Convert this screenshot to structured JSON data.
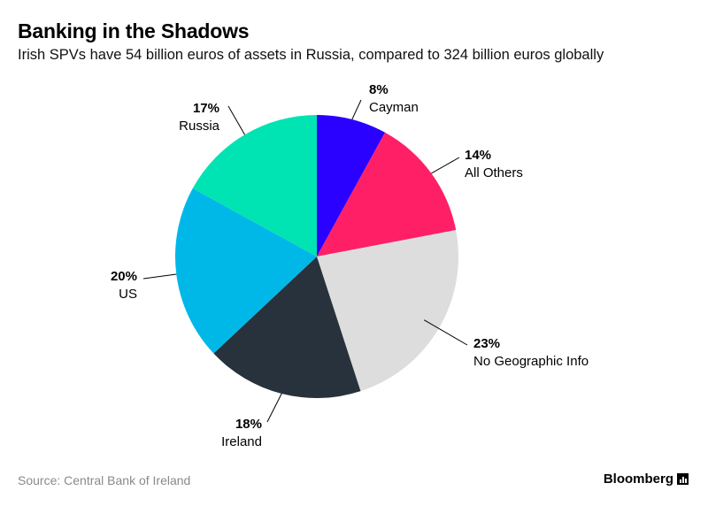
{
  "header": {
    "title": "Banking in the Shadows",
    "subtitle": "Irish SPVs have 54 billion euros of assets in Russia, compared to 324 billion euros globally"
  },
  "footer": {
    "source": "Source: Central Bank of Ireland",
    "brand": "Bloomberg",
    "brand_icon": "bloomberg-chart-icon"
  },
  "chart_data": {
    "type": "pie",
    "slices": [
      {
        "label": "Cayman",
        "value": 8,
        "display": "8%",
        "color": "#2a00ff"
      },
      {
        "label": "All Others",
        "value": 14,
        "display": "14%",
        "color": "#ff1f67"
      },
      {
        "label": "No Geographic Info",
        "value": 23,
        "display": "23%",
        "color": "#dddddd"
      },
      {
        "label": "Ireland",
        "value": 18,
        "display": "18%",
        "color": "#28323d"
      },
      {
        "label": "US",
        "value": 20,
        "display": "20%",
        "color": "#00b8e8"
      },
      {
        "label": "Russia",
        "value": 17,
        "display": "17%",
        "color": "#00e3b3"
      }
    ],
    "start": "top",
    "direction": "clockwise"
  }
}
